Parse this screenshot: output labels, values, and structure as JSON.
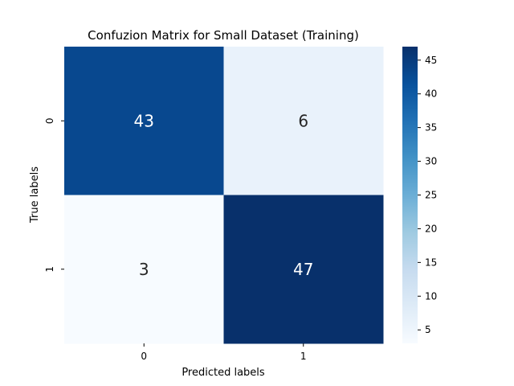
{
  "chart_data": {
    "type": "heatmap",
    "title": "Confuzion Matrix for Small Dataset (Training)",
    "xlabel": "Predicted labels",
    "ylabel": "True labels",
    "x_categories": [
      "0",
      "1"
    ],
    "y_categories": [
      "0",
      "1"
    ],
    "values": [
      [
        43,
        6
      ],
      [
        3,
        47
      ]
    ],
    "colormap": "Blues",
    "colorbar": {
      "ticks": [
        5,
        10,
        15,
        20,
        25,
        30,
        35,
        40,
        45
      ],
      "range": [
        3,
        47
      ]
    },
    "grid": false
  }
}
